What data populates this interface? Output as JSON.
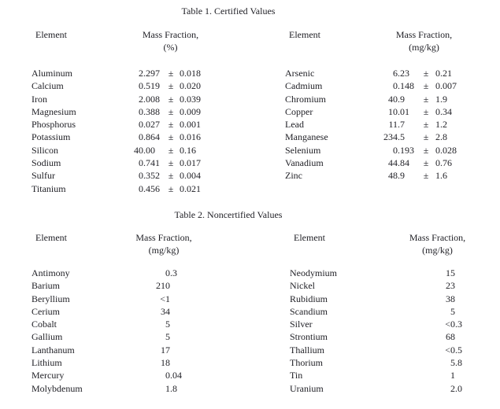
{
  "pm_symbol": "±",
  "table1": {
    "title": "Table 1. Certified Values",
    "halves": [
      {
        "element_header": "Element",
        "value_header": "Mass Fraction,",
        "value_unit": "(%)",
        "rows": [
          {
            "element": "Aluminum",
            "value": "2.297",
            "uncertainty": "0.018"
          },
          {
            "element": "Calcium",
            "value": "0.519",
            "uncertainty": "0.020"
          },
          {
            "element": "Iron",
            "value": "2.008",
            "uncertainty": "0.039"
          },
          {
            "element": "Magnesium",
            "value": "0.388",
            "uncertainty": "0.009"
          },
          {
            "element": "Phosphorus",
            "value": "0.027",
            "uncertainty": "0.001"
          },
          {
            "element": "Potassium",
            "value": "0.864",
            "uncertainty": "0.016"
          },
          {
            "element": "Silicon",
            "value": "40.00",
            "uncertainty": "0.16"
          },
          {
            "element": "Sodium",
            "value": "0.741",
            "uncertainty": "0.017"
          },
          {
            "element": "Sulfur",
            "value": "0.352",
            "uncertainty": "0.004"
          },
          {
            "element": "Titanium",
            "value": "0.456",
            "uncertainty": "0.021"
          }
        ]
      },
      {
        "element_header": "Element",
        "value_header": "Mass Fraction,",
        "value_unit": "(mg/kg)",
        "rows": [
          {
            "element": "Arsenic",
            "value": "6.23",
            "uncertainty": "0.21"
          },
          {
            "element": "Cadmium",
            "value": "0.148",
            "uncertainty": "0.007"
          },
          {
            "element": "Chromium",
            "value": "40.9",
            "uncertainty": "1.9"
          },
          {
            "element": "Copper",
            "value": "10.01",
            "uncertainty": "0.34"
          },
          {
            "element": "Lead",
            "value": "11.7",
            "uncertainty": "1.2"
          },
          {
            "element": "Manganese",
            "value": "234.5",
            "uncertainty": "2.8"
          },
          {
            "element": "Selenium",
            "value": "0.193",
            "uncertainty": "0.028"
          },
          {
            "element": "Vanadium",
            "value": "44.84",
            "uncertainty": "0.76"
          },
          {
            "element": "Zinc",
            "value": "48.9",
            "uncertainty": "1.6"
          }
        ]
      }
    ]
  },
  "table2": {
    "title": "Table 2. Noncertified Values",
    "halves": [
      {
        "element_header": "Element",
        "value_header": "Mass Fraction,",
        "value_unit": "(mg/kg)",
        "rows": [
          {
            "element": "Antimony",
            "value": "0.3"
          },
          {
            "element": "Barium",
            "value": "210"
          },
          {
            "element": "Beryllium",
            "value": "<1"
          },
          {
            "element": "Cerium",
            "value": "34"
          },
          {
            "element": "Cobalt",
            "value": "5"
          },
          {
            "element": "Gallium",
            "value": "5"
          },
          {
            "element": "Lanthanum",
            "value": "17"
          },
          {
            "element": "Lithium",
            "value": "18"
          },
          {
            "element": "Mercury",
            "value": "0.04"
          },
          {
            "element": "Molybdenum",
            "value": "1.8"
          }
        ]
      },
      {
        "element_header": "Element",
        "value_header": "Mass Fraction,",
        "value_unit": "(mg/kg)",
        "rows": [
          {
            "element": "Neodymium",
            "value": "15"
          },
          {
            "element": "Nickel",
            "value": "23"
          },
          {
            "element": "Rubidium",
            "value": "38"
          },
          {
            "element": "Scandium",
            "value": "5"
          },
          {
            "element": "Silver",
            "value": "<0.3"
          },
          {
            "element": "Strontium",
            "value": "68"
          },
          {
            "element": "Thallium",
            "value": "<0.5"
          },
          {
            "element": "Thorium",
            "value": "5.8"
          },
          {
            "element": "Tin",
            "value": "1"
          },
          {
            "element": "Uranium",
            "value": "2.0"
          }
        ]
      }
    ]
  }
}
